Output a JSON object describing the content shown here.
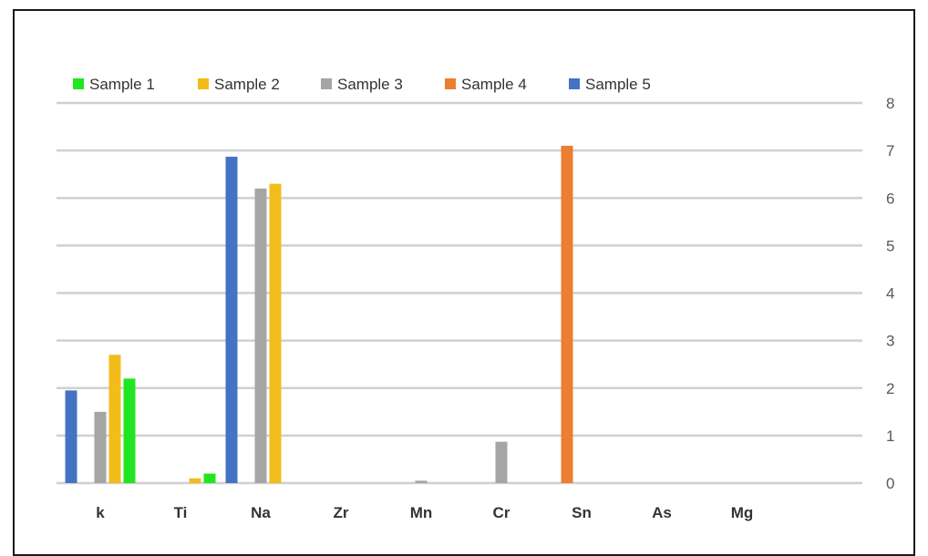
{
  "chart_data": {
    "type": "bar",
    "categories": [
      "k",
      "Ti",
      "Na",
      "Zr",
      "Mn",
      "Cr",
      "Sn",
      "As",
      "Mg"
    ],
    "series": [
      {
        "name": "Sample 1",
        "color": "#22e522",
        "values": [
          2.2,
          0.2,
          0,
          0,
          0,
          0,
          0,
          0,
          0
        ]
      },
      {
        "name": "Sample 2",
        "color": "#f2bd1a",
        "values": [
          2.7,
          0.1,
          6.3,
          0,
          0,
          0,
          0,
          0,
          0
        ]
      },
      {
        "name": "Sample 3",
        "color": "#a5a5a5",
        "values": [
          1.5,
          0,
          6.2,
          0,
          0.05,
          0.87,
          0,
          0,
          0
        ]
      },
      {
        "name": "Sample 4",
        "color": "#ed7d31",
        "values": [
          0,
          0,
          0,
          0,
          0,
          0,
          7.1,
          0,
          0
        ]
      },
      {
        "name": "Sample 5",
        "color": "#4472c4",
        "values": [
          1.95,
          0,
          6.87,
          0,
          0,
          0,
          0,
          0,
          0
        ]
      }
    ],
    "bar_order": [
      "Sample 5",
      "Sample 4",
      "Sample 3",
      "Sample 2",
      "Sample 1"
    ],
    "ylim": [
      0,
      8
    ],
    "yticks": [
      "0",
      "1",
      "2",
      "3",
      "4",
      "5",
      "6",
      "7",
      "8"
    ],
    "y_axis_position": "right",
    "grid": true,
    "legend_position": "top-left"
  }
}
